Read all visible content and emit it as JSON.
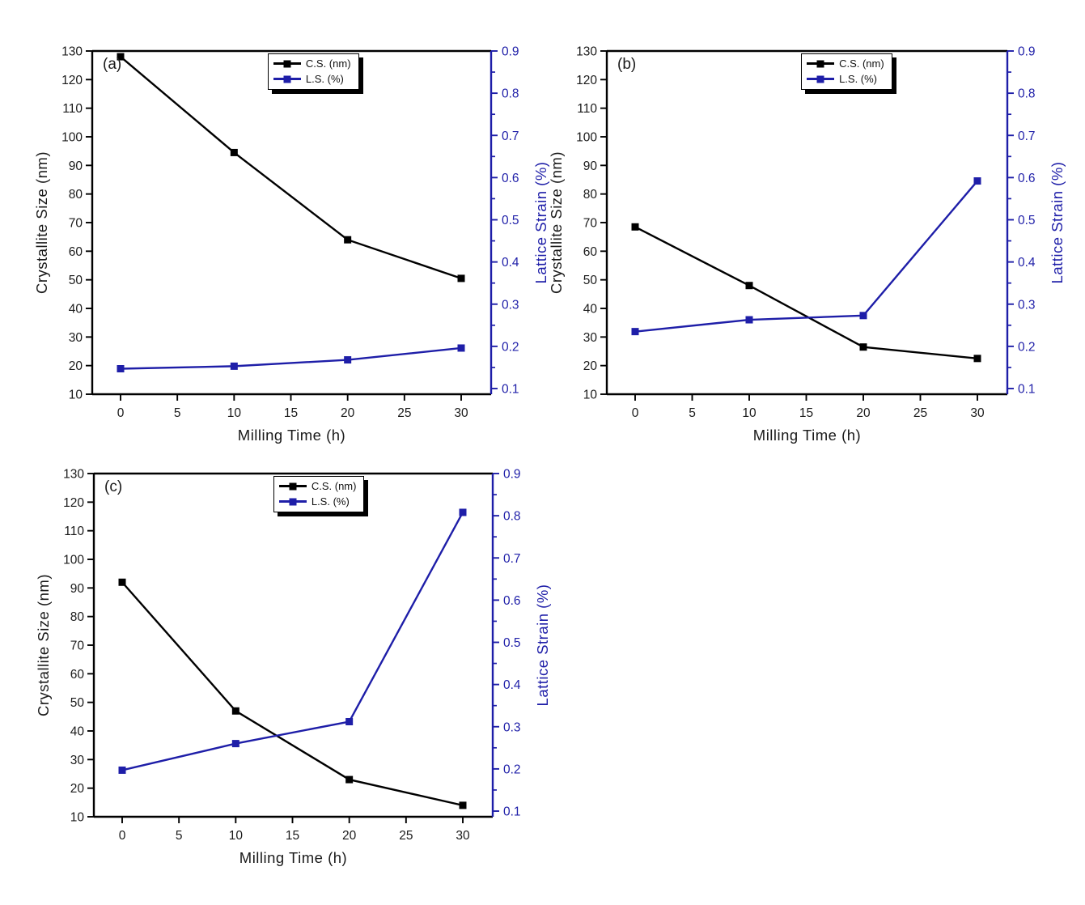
{
  "page": {
    "background": "#ffffff"
  },
  "chart_data": [
    {
      "type": "line",
      "panel_label": "(a)",
      "xlabel": "Milling Time (h)",
      "ylabel_left": "Crystallite Size (nm)",
      "ylabel_right": "Lattice Strain (%)",
      "x": [
        0,
        10,
        20,
        30
      ],
      "xticks": [
        0,
        5,
        10,
        15,
        20,
        25,
        30
      ],
      "ylim_left": [
        10,
        130
      ],
      "ytick_step_left": 10,
      "ylim_right": [
        0.1,
        0.9
      ],
      "ytick_step_right": 0.1,
      "grid": false,
      "legend_position": "top-center",
      "series": [
        {
          "name": "C.S. (nm)",
          "axis": "left",
          "color": "#000000",
          "marker": "square",
          "values": [
            128,
            94.5,
            64,
            50.5
          ]
        },
        {
          "name": "L.S. (%)",
          "axis": "right",
          "color": "#1e1ea8",
          "marker": "square",
          "values": [
            0.147,
            0.153,
            0.168,
            0.196
          ]
        }
      ]
    },
    {
      "type": "line",
      "panel_label": "(b)",
      "xlabel": "Milling Time (h)",
      "ylabel_left": "Crystallite Size (nm)",
      "ylabel_right": "Lattice Strain (%)",
      "x": [
        0,
        10,
        20,
        30
      ],
      "xticks": [
        0,
        5,
        10,
        15,
        20,
        25,
        30
      ],
      "ylim_left": [
        10,
        130
      ],
      "ytick_step_left": 10,
      "ylim_right": [
        0.1,
        0.9
      ],
      "ytick_step_right": 0.1,
      "grid": false,
      "legend_position": "top-center",
      "series": [
        {
          "name": "C.S. (nm)",
          "axis": "left",
          "color": "#000000",
          "marker": "square",
          "values": [
            68.5,
            48,
            26.5,
            22.5
          ]
        },
        {
          "name": "L.S. (%)",
          "axis": "right",
          "color": "#1e1ea8",
          "marker": "square",
          "values": [
            0.235,
            0.263,
            0.273,
            0.592
          ]
        }
      ]
    },
    {
      "type": "line",
      "panel_label": "(c)",
      "xlabel": "Milling Time (h)",
      "ylabel_left": "Crystallite Size (nm)",
      "ylabel_right": "Lattice Strain (%)",
      "x": [
        0,
        10,
        20,
        30
      ],
      "xticks": [
        0,
        5,
        10,
        15,
        20,
        25,
        30
      ],
      "ylim_left": [
        10,
        130
      ],
      "ytick_step_left": 10,
      "ylim_right": [
        0.1,
        0.9
      ],
      "ytick_step_right": 0.1,
      "grid": false,
      "legend_position": "top-center",
      "series": [
        {
          "name": "C.S. (nm)",
          "axis": "left",
          "color": "#000000",
          "marker": "square",
          "values": [
            92,
            47,
            23,
            14
          ]
        },
        {
          "name": "L.S. (%)",
          "axis": "right",
          "color": "#1e1ea8",
          "marker": "square",
          "values": [
            0.197,
            0.26,
            0.312,
            0.808
          ]
        }
      ]
    }
  ]
}
